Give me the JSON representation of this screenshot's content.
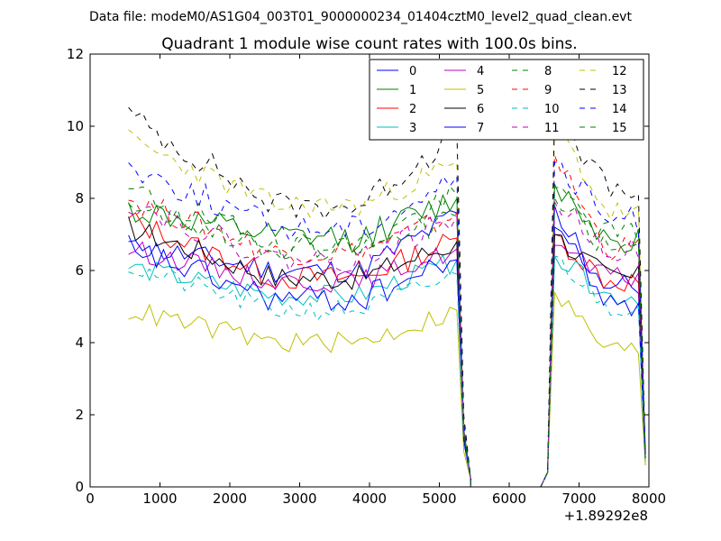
{
  "suptitle": "Data file: modeM0/AS1G04_003T01_9000000234_01404cztM0_level2_quad_clean.evt",
  "chart_data": {
    "type": "line",
    "title": "Quadrant 1 module wise count rates with 100.0s bins.",
    "xlabel": "",
    "ylabel": "",
    "x_offset_label": "+1.89292e8",
    "xlim": [
      0,
      8000
    ],
    "ylim": [
      0,
      12
    ],
    "xticks": [
      0,
      1000,
      2000,
      3000,
      4000,
      5000,
      6000,
      7000,
      8000
    ],
    "yticks": [
      0,
      2,
      4,
      6,
      8,
      10,
      12
    ],
    "grid": false,
    "legend_position": "top-right",
    "bin_seconds": 100,
    "x_start": 550,
    "x_end": 7950,
    "segments": [
      [
        550,
        5150
      ],
      [
        6650,
        7850
      ]
    ],
    "gap": {
      "drop": [
        5250,
        5350,
        5450
      ],
      "zero_from": 5450,
      "zero_to": 6450,
      "rise": [
        6450,
        6550
      ]
    },
    "series": [
      {
        "name": "0",
        "color": "#0000ff",
        "dash": "solid",
        "level": 6.0,
        "start": 6.7,
        "end": 5.6,
        "amp": 0.35,
        "seed": 11,
        "peak": 7.6,
        "post": 7.2,
        "tail": 0.9
      },
      {
        "name": "1",
        "color": "#008000",
        "dash": "solid",
        "level": 6.9,
        "start": 7.7,
        "end": 6.9,
        "amp": 0.4,
        "seed": 12,
        "peak": 8.0,
        "post": 8.4,
        "tail": 0.8
      },
      {
        "name": "2",
        "color": "#ff0000",
        "dash": "solid",
        "level": 5.8,
        "start": 7.4,
        "end": 5.7,
        "amp": 0.35,
        "seed": 13,
        "peak": 6.9,
        "post": 7.0,
        "tail": 0.8
      },
      {
        "name": "3",
        "color": "#00bfbf",
        "dash": "solid",
        "level": 5.3,
        "start": 6.1,
        "end": 5.3,
        "amp": 0.3,
        "seed": 14,
        "peak": 6.3,
        "post": 6.4,
        "tail": 0.6
      },
      {
        "name": "4",
        "color": "#bf00bf",
        "dash": "solid",
        "level": 5.7,
        "start": 6.6,
        "end": 5.8,
        "amp": 0.3,
        "seed": 15,
        "peak": 6.6,
        "post": 6.7,
        "tail": 0.8
      },
      {
        "name": "5",
        "color": "#bfbf00",
        "dash": "solid",
        "level": 4.0,
        "start": 4.9,
        "end": 3.8,
        "amp": 0.3,
        "seed": 16,
        "peak": 4.9,
        "post": 5.4,
        "tail": 0.6
      },
      {
        "name": "6",
        "color": "#000000",
        "dash": "solid",
        "level": 5.8,
        "start": 7.2,
        "end": 5.8,
        "amp": 0.35,
        "seed": 17,
        "peak": 6.8,
        "post": 7.0,
        "tail": 0.9
      },
      {
        "name": "7",
        "color": "#0000ff",
        "dash": "solid",
        "level": 5.2,
        "start": 6.6,
        "end": 5.0,
        "amp": 0.4,
        "seed": 18,
        "peak": 6.3,
        "post": 7.8,
        "tail": 0.7
      },
      {
        "name": "8",
        "color": "#008000",
        "dash": "dashed",
        "level": 6.7,
        "start": 8.2,
        "end": 7.0,
        "amp": 0.4,
        "seed": 19,
        "peak": 8.1,
        "post": 8.3,
        "tail": 0.9
      },
      {
        "name": "9",
        "color": "#ff0000",
        "dash": "dashed",
        "level": 6.5,
        "start": 8.0,
        "end": 6.6,
        "amp": 0.35,
        "seed": 20,
        "peak": 7.6,
        "post": 9.2,
        "tail": 0.8
      },
      {
        "name": "10",
        "color": "#00bfbf",
        "dash": "dashed",
        "level": 4.9,
        "start": 6.1,
        "end": 5.0,
        "amp": 0.3,
        "seed": 21,
        "peak": 5.9,
        "post": 6.4,
        "tail": 0.7
      },
      {
        "name": "11",
        "color": "#bf00bf",
        "dash": "dashed",
        "level": 6.3,
        "start": 7.9,
        "end": 6.6,
        "amp": 0.35,
        "seed": 22,
        "peak": 7.5,
        "post": 7.9,
        "tail": 0.8
      },
      {
        "name": "12",
        "color": "#bfbf00",
        "dash": "dashed",
        "level": 7.8,
        "start": 9.6,
        "end": 7.6,
        "amp": 0.35,
        "seed": 23,
        "peak": 9.0,
        "post": 10.1,
        "tail": 0.6
      },
      {
        "name": "13",
        "color": "#000000",
        "dash": "dashed",
        "level": 7.8,
        "start": 10.3,
        "end": 8.2,
        "amp": 0.4,
        "seed": 24,
        "peak": 9.9,
        "post": 10.5,
        "tail": 0.9
      },
      {
        "name": "14",
        "color": "#0000ff",
        "dash": "dashed",
        "level": 7.2,
        "start": 8.9,
        "end": 7.4,
        "amp": 0.4,
        "seed": 25,
        "peak": 8.6,
        "post": 9.0,
        "tail": 0.9
      },
      {
        "name": "15",
        "color": "#008000",
        "dash": "dashed",
        "level": 6.6,
        "start": 7.9,
        "end": 6.6,
        "amp": 0.35,
        "seed": 26,
        "peak": 7.5,
        "post": 8.0,
        "tail": 0.8
      }
    ]
  }
}
